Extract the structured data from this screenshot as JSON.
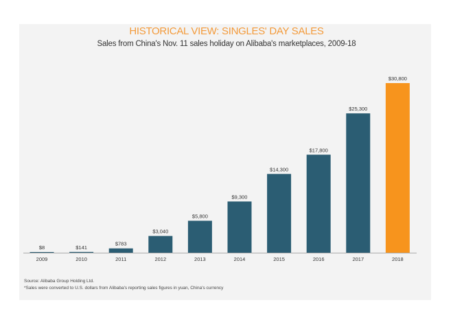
{
  "chart_data": {
    "type": "bar",
    "title": "HISTORICAL VIEW: SINGLES' DAY SALES",
    "subtitle": "Sales from China's Nov. 11 sales holiday on Alibaba's marketplaces, 2009-18",
    "categories": [
      "2009",
      "2010",
      "2011",
      "2012",
      "2013",
      "2014",
      "2015",
      "2016",
      "2017",
      "2018"
    ],
    "values": [
      8,
      141,
      783,
      3040,
      5800,
      9300,
      14300,
      17800,
      25300,
      30800
    ],
    "data_labels": [
      "$8",
      "$141",
      "$783",
      "$3,040",
      "$5,800",
      "$9,300",
      "$14,300",
      "$17,800",
      "$25,300",
      "$30,800"
    ],
    "ylim": [
      0,
      30800
    ],
    "grid": false,
    "colors": {
      "default": "#2b5d73",
      "highlight": "#f7941d",
      "highlight_category": "2018",
      "title": "#f39a3a"
    }
  },
  "footer": {
    "source": "Source: Alibaba Group Holding Ltd.",
    "note": "*Sales were converted to U.S. dollars from Alibaba's reporting sales figures in yuan, China's currency"
  }
}
